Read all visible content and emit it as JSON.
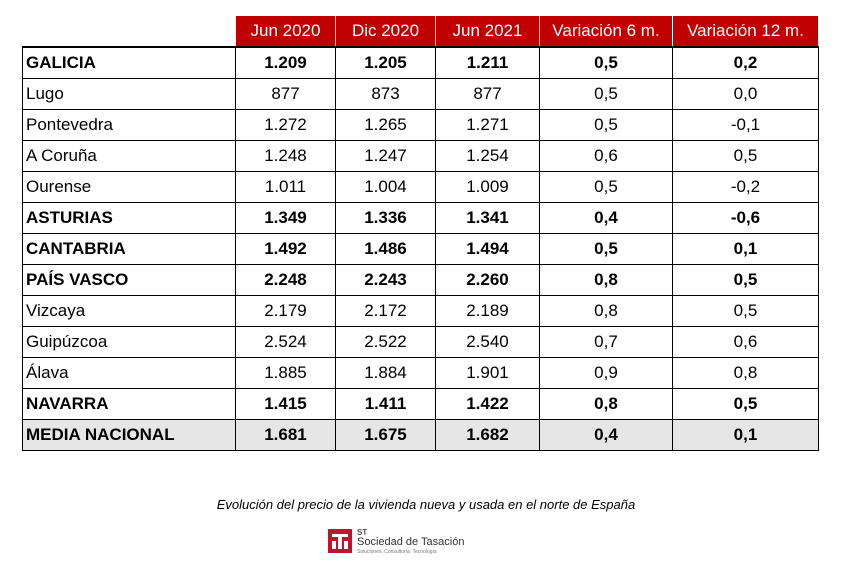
{
  "table": {
    "headers": [
      "",
      "Jun 2020",
      "Dic 2020",
      "Jun 2021",
      "Variación 6 m.",
      "Variación 12 m."
    ],
    "rows": [
      {
        "name": "GALICIA",
        "bold": true,
        "values": [
          "1.209",
          "1.205",
          "1.211",
          "0,5",
          "0,2"
        ]
      },
      {
        "name": "Lugo",
        "bold": false,
        "values": [
          "877",
          "873",
          "877",
          "0,5",
          "0,0"
        ]
      },
      {
        "name": "Pontevedra",
        "bold": false,
        "values": [
          "1.272",
          "1.265",
          "1.271",
          "0,5",
          "-0,1"
        ]
      },
      {
        "name": "A Coruña",
        "bold": false,
        "values": [
          "1.248",
          "1.247",
          "1.254",
          "0,6",
          "0,5"
        ]
      },
      {
        "name": "Ourense",
        "bold": false,
        "values": [
          "1.011",
          "1.004",
          "1.009",
          "0,5",
          "-0,2"
        ]
      },
      {
        "name": "ASTURIAS",
        "bold": true,
        "values": [
          "1.349",
          "1.336",
          "1.341",
          "0,4",
          "-0,6"
        ]
      },
      {
        "name": "CANTABRIA",
        "bold": true,
        "values": [
          "1.492",
          "1.486",
          "1.494",
          "0,5",
          "0,1"
        ]
      },
      {
        "name": "PAÍS VASCO",
        "bold": true,
        "values": [
          "2.248",
          "2.243",
          "2.260",
          "0,8",
          "0,5"
        ]
      },
      {
        "name": "Vizcaya",
        "bold": false,
        "values": [
          "2.179",
          "2.172",
          "2.189",
          "0,8",
          "0,5"
        ]
      },
      {
        "name": "Guipúzcoa",
        "bold": false,
        "values": [
          "2.524",
          "2.522",
          "2.540",
          "0,7",
          "0,6"
        ]
      },
      {
        "name": "Álava",
        "bold": false,
        "values": [
          "1.885",
          "1.884",
          "1.901",
          "0,9",
          "0,8"
        ]
      },
      {
        "name": "NAVARRA",
        "bold": true,
        "values": [
          "1.415",
          "1.411",
          "1.422",
          "0,8",
          "0,5"
        ]
      },
      {
        "name": "MEDIA NACIONAL",
        "bold": true,
        "shaded": true,
        "values": [
          "1.681",
          "1.675",
          "1.682",
          "0,4",
          "0,1"
        ]
      }
    ]
  },
  "caption": "Evolución del precio de la vivienda nueva y usada en el norte de España",
  "logo": {
    "abbr": "ST",
    "name": "Sociedad de Tasación",
    "tagline": "Soluciones. Consultoría. Tecnología",
    "color": "#c8102e"
  },
  "colors": {
    "header_bg": "#c00000",
    "shade": "#e7e6e6"
  }
}
